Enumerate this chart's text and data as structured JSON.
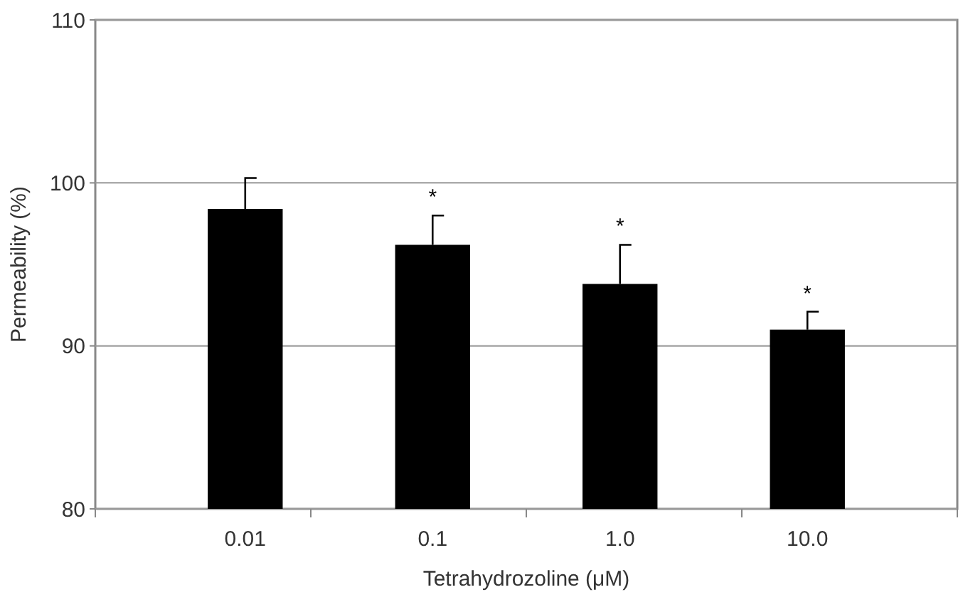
{
  "chart_data": {
    "type": "bar",
    "xlabel": "Tetrahydrozoline (μM)",
    "ylabel": "Permeability (%)",
    "categories": [
      "0.01",
      "0.1",
      "1.0",
      "10.0"
    ],
    "series": [
      {
        "color": "#000000",
        "values": [
          98.4,
          96.2,
          93.8,
          91.0
        ],
        "errors": [
          [
            98.4,
            100.3
          ],
          [
            96.2,
            98.0
          ],
          [
            93.8,
            96.2
          ],
          [
            91.0,
            92.1
          ]
        ]
      }
    ],
    "ylim": [
      80,
      110
    ],
    "yticks": [
      80,
      90,
      100,
      110
    ],
    "grid": "y",
    "annotations": [
      {
        "text": "*",
        "x": "0.1",
        "y": 98.0
      },
      {
        "text": "*",
        "x": "1.0",
        "y": 96.2
      },
      {
        "text": "*",
        "x": "10.0",
        "y": 92.1
      }
    ]
  }
}
